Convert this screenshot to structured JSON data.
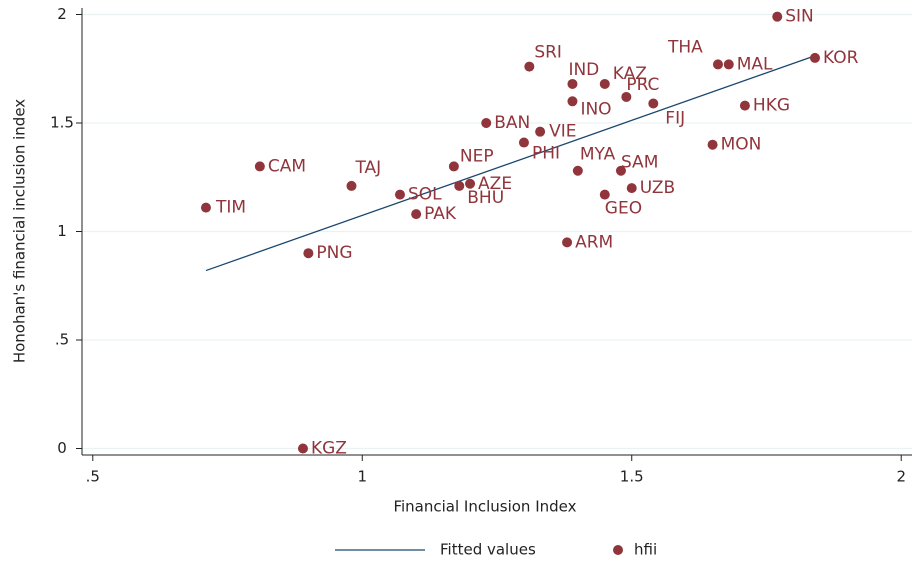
{
  "chart_data": {
    "type": "scatter",
    "x_label": "Financial Inclusion Index",
    "y_label": "Honohan's financial inclusion index",
    "xlim": [
      0.48,
      2.02
    ],
    "xticks": [
      {
        "value": 0.5,
        "label": ".5"
      },
      1,
      1.5,
      2
    ],
    "ylim": [
      -0.03,
      2.03
    ],
    "yticks": [
      0,
      {
        "value": 0.5,
        "label": ".5"
      },
      1,
      1.5,
      2
    ],
    "grid": true,
    "legend": "bottom",
    "series": [
      {
        "name": "Fitted values",
        "type": "line",
        "color": "#1a476f",
        "x": [
          0.71,
          1.84
        ],
        "values": [
          0.82,
          1.81
        ]
      },
      {
        "name": "hfii",
        "type": "scatter",
        "color": "#90353b",
        "labels": [
          "SIN",
          "KOR",
          "THA",
          "MAL",
          "SRI",
          "IND",
          "KAZ",
          "PRC",
          "INO",
          "FIJ",
          "HKG",
          "BAN",
          "VIE",
          "PHI",
          "MON",
          "CAM",
          "NEP",
          "TAJ",
          "MYA",
          "SAM",
          "AZE",
          "BHU",
          "SOL",
          "UZB",
          "GEO",
          "TIM",
          "PAK",
          "ARM",
          "PNG",
          "KGZ"
        ],
        "x": [
          1.77,
          1.84,
          1.66,
          1.68,
          1.31,
          1.39,
          1.45,
          1.49,
          1.39,
          1.54,
          1.71,
          1.23,
          1.33,
          1.3,
          1.65,
          0.81,
          1.17,
          0.98,
          1.4,
          1.48,
          1.2,
          1.18,
          1.07,
          1.5,
          1.45,
          0.71,
          1.1,
          1.38,
          0.9,
          0.89
        ],
        "values": [
          1.99,
          1.8,
          1.77,
          1.77,
          1.76,
          1.68,
          1.68,
          1.62,
          1.6,
          1.59,
          1.58,
          1.5,
          1.46,
          1.41,
          1.4,
          1.3,
          1.3,
          1.21,
          1.28,
          1.28,
          1.22,
          1.21,
          1.17,
          1.2,
          1.17,
          1.11,
          1.08,
          0.95,
          0.9,
          0
        ]
      }
    ]
  }
}
